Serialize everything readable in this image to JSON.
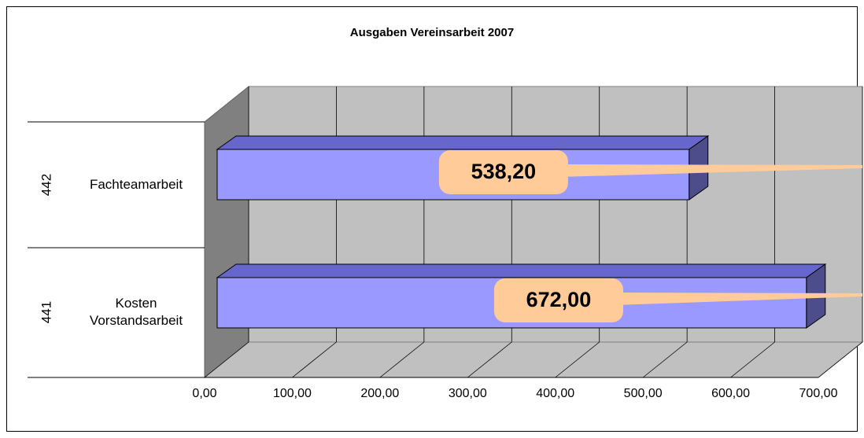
{
  "chart_data": {
    "type": "bar3d_horizontal",
    "title": "Ausgaben Vereinsarbeit 2007",
    "categories": [
      "Fachteamarbeit",
      "Kosten Vorstandsarbeit"
    ],
    "category_codes": [
      "442",
      "441"
    ],
    "values": [
      538.2,
      672.0
    ],
    "value_labels": [
      "538,20",
      "672,00"
    ],
    "color": "#9999ff",
    "xlim": [
      0,
      700
    ],
    "xticks": [
      {
        "value": 0,
        "label": "0,00"
      },
      {
        "value": 100,
        "label": "100,00"
      },
      {
        "value": 200,
        "label": "200,00"
      },
      {
        "value": 300,
        "label": "300,00"
      },
      {
        "value": 400,
        "label": "400,00"
      },
      {
        "value": 500,
        "label": "500,00"
      },
      {
        "value": 600,
        "label": "600,00"
      },
      {
        "value": 700,
        "label": "700,00"
      }
    ],
    "grid": true
  }
}
